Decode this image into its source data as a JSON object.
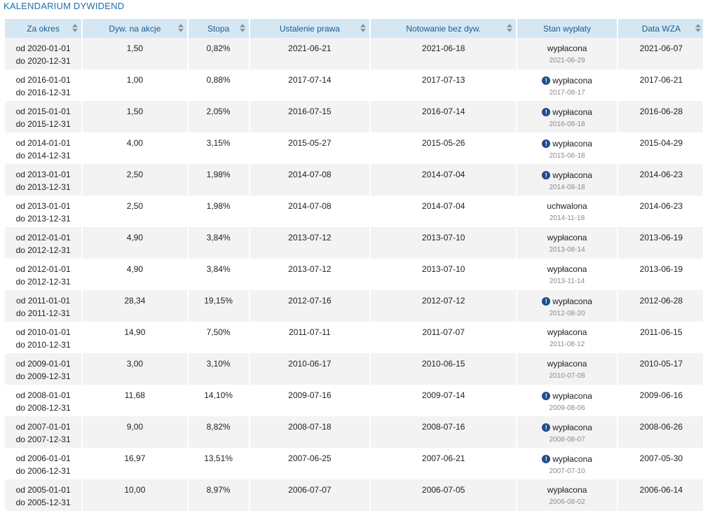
{
  "title": "KALENDARIUM DYWIDEND",
  "columns": [
    "Za okres",
    "Dyw. na akcje",
    "Stopa",
    "Ustalenie prawa",
    "Notowanie bez dyw.",
    "Stan wypłaty",
    "Data WZA"
  ],
  "rows": [
    {
      "from": "od 2020-01-01",
      "to": "do 2020-12-31",
      "dyw": "1,50",
      "stopa": "0,82%",
      "ustalenie": "2021-06-21",
      "notowanie": "2021-06-18",
      "stan": "wypłacona",
      "alert": false,
      "stan_date": "2021-06-29",
      "wza": "2021-06-07"
    },
    {
      "from": "od 2016-01-01",
      "to": "do 2016-12-31",
      "dyw": "1,00",
      "stopa": "0,88%",
      "ustalenie": "2017-07-14",
      "notowanie": "2017-07-13",
      "stan": "wypłacona",
      "alert": true,
      "stan_date": "2017-08-17",
      "wza": "2017-06-21"
    },
    {
      "from": "od 2015-01-01",
      "to": "do 2015-12-31",
      "dyw": "1,50",
      "stopa": "2,05%",
      "ustalenie": "2016-07-15",
      "notowanie": "2016-07-14",
      "stan": "wypłacona",
      "alert": true,
      "stan_date": "2016-08-18",
      "wza": "2016-06-28"
    },
    {
      "from": "od 2014-01-01",
      "to": "do 2014-12-31",
      "dyw": "4,00",
      "stopa": "3,15%",
      "ustalenie": "2015-05-27",
      "notowanie": "2015-05-26",
      "stan": "wypłacona",
      "alert": true,
      "stan_date": "2015-06-18",
      "wza": "2015-04-29"
    },
    {
      "from": "od 2013-01-01",
      "to": "do 2013-12-31",
      "dyw": "2,50",
      "stopa": "1,98%",
      "ustalenie": "2014-07-08",
      "notowanie": "2014-07-04",
      "stan": "wypłacona",
      "alert": true,
      "stan_date": "2014-08-18",
      "wza": "2014-06-23"
    },
    {
      "from": "od 2013-01-01",
      "to": "do 2013-12-31",
      "dyw": "2,50",
      "stopa": "1,98%",
      "ustalenie": "2014-07-08",
      "notowanie": "2014-07-04",
      "stan": "uchwalona",
      "alert": false,
      "stan_date": "2014-11-18",
      "wza": "2014-06-23"
    },
    {
      "from": "od 2012-01-01",
      "to": "do 2012-12-31",
      "dyw": "4,90",
      "stopa": "3,84%",
      "ustalenie": "2013-07-12",
      "notowanie": "2013-07-10",
      "stan": "wypłacona",
      "alert": false,
      "stan_date": "2013-08-14",
      "wza": "2013-06-19"
    },
    {
      "from": "od 2012-01-01",
      "to": "do 2012-12-31",
      "dyw": "4,90",
      "stopa": "3,84%",
      "ustalenie": "2013-07-12",
      "notowanie": "2013-07-10",
      "stan": "wypłacona",
      "alert": false,
      "stan_date": "2013-11-14",
      "wza": "2013-06-19"
    },
    {
      "from": "od 2011-01-01",
      "to": "do 2011-12-31",
      "dyw": "28,34",
      "stopa": "19,15%",
      "ustalenie": "2012-07-16",
      "notowanie": "2012-07-12",
      "stan": "wypłacona",
      "alert": true,
      "stan_date": "2012-08-20",
      "wza": "2012-06-28"
    },
    {
      "from": "od 2010-01-01",
      "to": "do 2010-12-31",
      "dyw": "14,90",
      "stopa": "7,50%",
      "ustalenie": "2011-07-11",
      "notowanie": "2011-07-07",
      "stan": "wypłacona",
      "alert": false,
      "stan_date": "2011-08-12",
      "wza": "2011-06-15"
    },
    {
      "from": "od 2009-01-01",
      "to": "do 2009-12-31",
      "dyw": "3,00",
      "stopa": "3,10%",
      "ustalenie": "2010-06-17",
      "notowanie": "2010-06-15",
      "stan": "wypłacona",
      "alert": false,
      "stan_date": "2010-07-08",
      "wza": "2010-05-17"
    },
    {
      "from": "od 2008-01-01",
      "to": "do 2008-12-31",
      "dyw": "11,68",
      "stopa": "14,10%",
      "ustalenie": "2009-07-16",
      "notowanie": "2009-07-14",
      "stan": "wypłacona",
      "alert": true,
      "stan_date": "2009-08-06",
      "wza": "2009-06-16"
    },
    {
      "from": "od 2007-01-01",
      "to": "do 2007-12-31",
      "dyw": "9,00",
      "stopa": "8,82%",
      "ustalenie": "2008-07-18",
      "notowanie": "2008-07-16",
      "stan": "wypłacona",
      "alert": true,
      "stan_date": "2008-08-07",
      "wza": "2008-06-26"
    },
    {
      "from": "od 2006-01-01",
      "to": "do 2006-12-31",
      "dyw": "16,97",
      "stopa": "13,51%",
      "ustalenie": "2007-06-25",
      "notowanie": "2007-06-21",
      "stan": "wypłacona",
      "alert": true,
      "stan_date": "2007-07-10",
      "wza": "2007-05-30"
    },
    {
      "from": "od 2005-01-01",
      "to": "do 2005-12-31",
      "dyw": "10,00",
      "stopa": "8,97%",
      "ustalenie": "2006-07-07",
      "notowanie": "2006-07-05",
      "stan": "wypłacona",
      "alert": false,
      "stan_date": "2006-08-02",
      "wza": "2006-06-14"
    }
  ]
}
